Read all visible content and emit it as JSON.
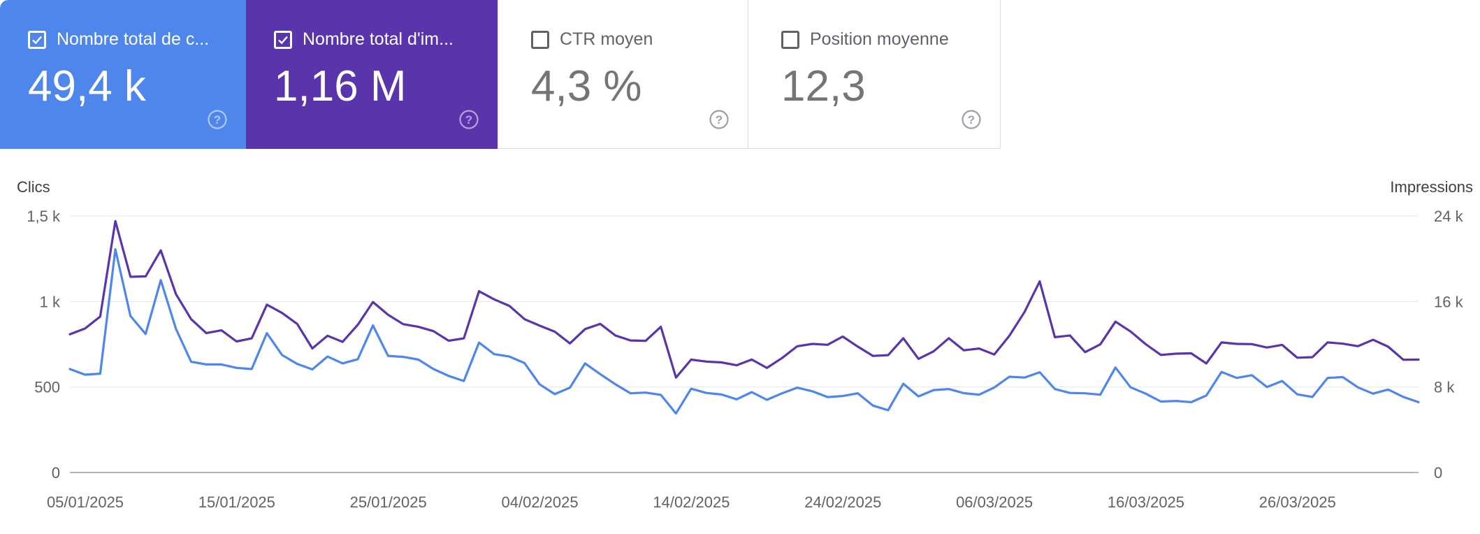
{
  "cards": [
    {
      "id": "clicks",
      "label": "Nombre total de c...",
      "value": "49,4 k",
      "checked": true,
      "color": "#4e86eb"
    },
    {
      "id": "impressions",
      "label": "Nombre total d'im...",
      "value": "1,16 M",
      "checked": true,
      "color": "#5a34ab"
    },
    {
      "id": "ctr",
      "label": "CTR moyen",
      "value": "4,3 %",
      "checked": false
    },
    {
      "id": "position",
      "label": "Position moyenne",
      "value": "12,3",
      "checked": false
    }
  ],
  "chart_data": {
    "type": "line",
    "ylabel": "Clics",
    "y2label": "Impressions",
    "ylim": [
      0,
      1500
    ],
    "y2lim": [
      0,
      24000
    ],
    "y_ticks": [
      "0",
      "500",
      "1 k",
      "1,5 k"
    ],
    "y2_ticks": [
      "0",
      "8 k",
      "16 k",
      "24 k"
    ],
    "x_tick_labels": [
      "05/01/2025",
      "15/01/2025",
      "25/01/2025",
      "04/02/2025",
      "14/02/2025",
      "24/02/2025",
      "06/03/2025",
      "16/03/2025",
      "26/03/2025"
    ],
    "x_start": "2025-01-05",
    "x_end": "2025-04-04",
    "grid": true,
    "series": [
      {
        "name": "Clics",
        "axis": "left",
        "color": "#4e86eb",
        "values": [
          605,
          572,
          578,
          1305,
          915,
          810,
          1125,
          840,
          648,
          632,
          632,
          612,
          605,
          815,
          687,
          635,
          603,
          678,
          638,
          662,
          860,
          682,
          676,
          660,
          605,
          565,
          535,
          760,
          692,
          678,
          640,
          516,
          458,
          496,
          638,
          575,
          516,
          463,
          467,
          454,
          345,
          490,
          465,
          456,
          428,
          470,
          425,
          463,
          496,
          475,
          441,
          447,
          463,
          391,
          364,
          519,
          445,
          482,
          488,
          464,
          455,
          497,
          560,
          555,
          586,
          488,
          465,
          463,
          455,
          614,
          498,
          461,
          415,
          418,
          411,
          450,
          588,
          553,
          569,
          500,
          535,
          457,
          442,
          553,
          558,
          498,
          461,
          485,
          442,
          411
        ]
      },
      {
        "name": "Impressions",
        "axis": "right",
        "color": "#5a34ab",
        "values": [
          12930,
          13470,
          14590,
          23520,
          18310,
          18350,
          20780,
          16690,
          14350,
          13040,
          13300,
          12260,
          12550,
          15700,
          14930,
          13900,
          11610,
          12800,
          12220,
          13820,
          15950,
          14750,
          13880,
          13630,
          13220,
          12330,
          12550,
          16960,
          16200,
          15590,
          14350,
          13740,
          13180,
          12080,
          13420,
          13900,
          12820,
          12350,
          12320,
          13630,
          8880,
          10560,
          10380,
          10300,
          10030,
          10570,
          9780,
          10710,
          11810,
          12030,
          11950,
          12720,
          11780,
          10910,
          10980,
          12560,
          10630,
          11330,
          12560,
          11430,
          11600,
          11040,
          12790,
          15020,
          17880,
          12660,
          12820,
          11260,
          11990,
          14110,
          13190,
          12000,
          11000,
          11120,
          11150,
          10200,
          12170,
          12030,
          12010,
          11690,
          11940,
          10740,
          10790,
          12170,
          12050,
          11820,
          12420,
          11770,
          10550,
          10560
        ]
      }
    ]
  }
}
